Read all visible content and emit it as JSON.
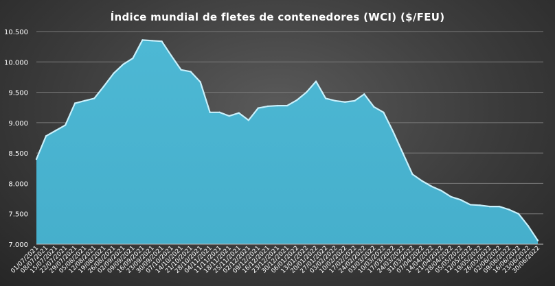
{
  "chart_data": {
    "type": "area",
    "title": "Índice mundial de fletes de contenedores (WCI) ($/FEU)",
    "xlabel": "",
    "ylabel": "",
    "ylim": [
      7000,
      10500
    ],
    "yticks": [
      7000,
      7500,
      8000,
      8500,
      9000,
      9500,
      10000,
      10500
    ],
    "ytick_labels": [
      "7.000",
      "7.500",
      "8.000",
      "8.500",
      "9.000",
      "9.500",
      "10.000",
      "10.500"
    ],
    "grid": true,
    "legend": "none",
    "colors": {
      "fill": "#4db8d4",
      "edge": "#c9f0fb",
      "grid": "#7a7a7a"
    },
    "x": [
      "01/07/2021",
      "08/07/2021",
      "15/07/2021",
      "22/07/2021",
      "29/07/2021",
      "05/08/2021",
      "12/08/2021",
      "19/08/2021",
      "26/08/2021",
      "02/09/2021",
      "09/09/2021",
      "16/09/2021",
      "23/09/2021",
      "30/09/2021",
      "07/10/2021",
      "14/10/2021",
      "21/10/2021",
      "28/10/2021",
      "04/11/2021",
      "11/11/2021",
      "18/11/2021",
      "25/11/2021",
      "02/12/2021",
      "09/12/2021",
      "16/12/2021",
      "23/12/2021",
      "30/12/2021",
      "06/01/2022",
      "13/01/2022",
      "20/01/2022",
      "27/01/2022",
      "03/02/2022",
      "10/02/2022",
      "17/02/2022",
      "24/02/2022",
      "03/03/2022",
      "10/03/2022",
      "17/03/2022",
      "24/03/2022",
      "31/03/2022",
      "07/04/2022",
      "14/04/2022",
      "21/04/2022",
      "28/04/2022",
      "05/05/2022",
      "12/05/2022",
      "19/05/2022",
      "26/05/2022",
      "02/06/2022",
      "09/06/2022",
      "16/06/2022",
      "23/06/2022",
      "30/06/2022"
    ],
    "series": [
      {
        "values": [
          8400,
          8780,
          8870,
          8960,
          9320,
          9360,
          9400,
          9600,
          9810,
          9960,
          10060,
          10360,
          10350,
          10340,
          10100,
          9870,
          9840,
          9670,
          9170,
          9170,
          9110,
          9160,
          9040,
          9240,
          9270,
          9280,
          9280,
          9370,
          9500,
          9680,
          9400,
          9360,
          9340,
          9360,
          9470,
          9260,
          9170,
          8850,
          8500,
          8150,
          8040,
          7950,
          7880,
          7780,
          7730,
          7650,
          7640,
          7620,
          7620,
          7570,
          7500,
          7300,
          7060
        ]
      }
    ]
  }
}
